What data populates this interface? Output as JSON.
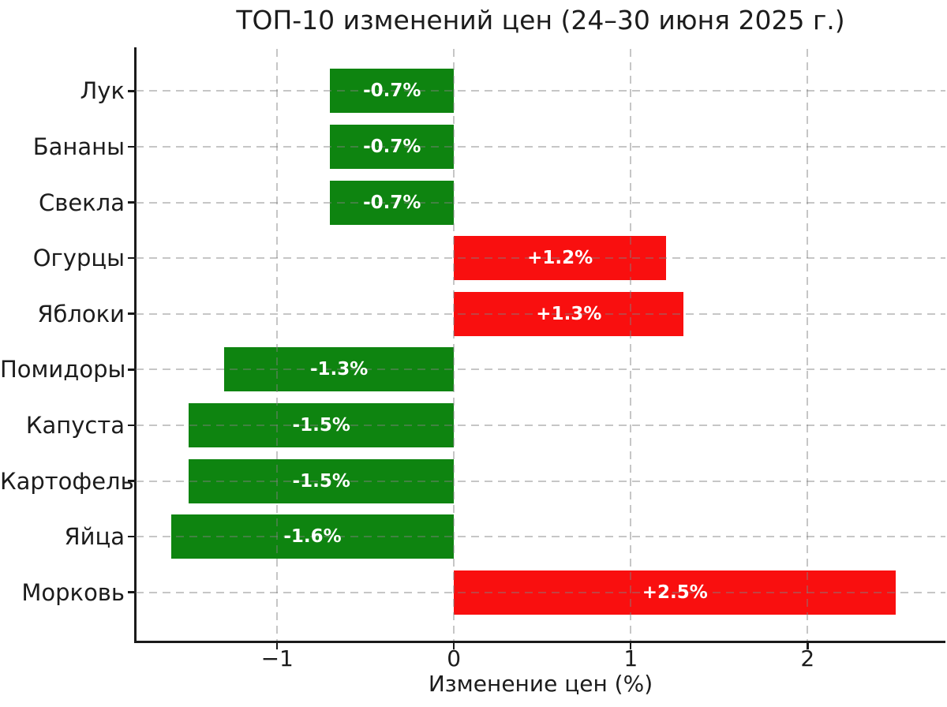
{
  "chart_data": {
    "type": "bar",
    "orientation": "horizontal",
    "title": "ТОП-10 изменений цен (24–30 июня 2025 г.)",
    "xlabel": "Изменение цен (%)",
    "ylabel": "",
    "categories": [
      "Лук",
      "Бананы",
      "Свекла",
      "Огурцы",
      "Яблоки",
      "Помидоры",
      "Капуста",
      "Картофель",
      "Яйца",
      "Морковь"
    ],
    "values": [
      -0.7,
      -0.7,
      -0.7,
      1.2,
      1.3,
      -1.3,
      -1.5,
      -1.5,
      -1.6,
      2.5
    ],
    "bar_labels": [
      "-0.7%",
      "-0.7%",
      "-0.7%",
      "+1.2%",
      "+1.3%",
      "-1.3%",
      "-1.5%",
      "-1.5%",
      "-1.6%",
      "+2.5%"
    ],
    "x_ticks": [
      -1,
      0,
      1,
      2
    ],
    "x_tick_labels": [
      "−1",
      "0",
      "1",
      "2"
    ],
    "xlim": [
      -1.8,
      2.78
    ],
    "colors": {
      "positive": "#f90f0f",
      "negative": "#0e8410",
      "bar_label": "#ffffff",
      "grid": "#808080",
      "axis": "#1a1a1a",
      "text": "#1c1c1c",
      "background": "#ffffff"
    },
    "grid": {
      "visible": true,
      "linestyle": "dashed",
      "horizontal": true,
      "vertical": true,
      "above_bars": true
    },
    "legend": {
      "visible": false
    }
  }
}
